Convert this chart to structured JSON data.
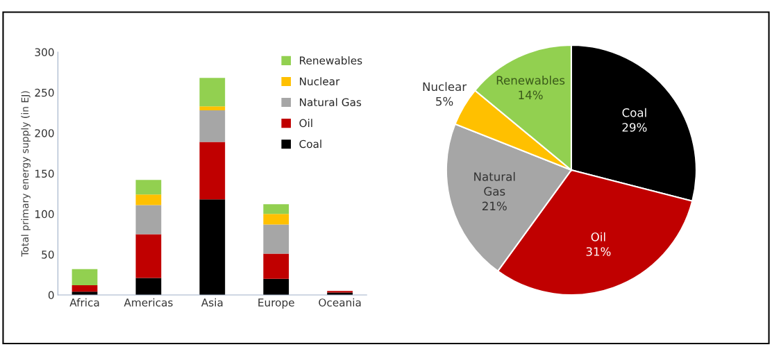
{
  "chart_data": [
    {
      "type": "bar",
      "stacked": true,
      "ylabel": "Total primary energy supply (in EJ)",
      "categories": [
        "Africa",
        "Americas",
        "Asia",
        "Europe",
        "Oceania"
      ],
      "ylim": [
        0,
        300
      ],
      "yticks": [
        0,
        50,
        100,
        150,
        200,
        250,
        300
      ],
      "grid": false,
      "legend": "top right",
      "series": [
        {
          "name": "Coal",
          "color": "#000000",
          "values": [
            4,
            21,
            118,
            20,
            3
          ]
        },
        {
          "name": "Oil",
          "color": "#c00000",
          "values": [
            8,
            54,
            71,
            31,
            2
          ]
        },
        {
          "name": "Natural Gas",
          "color": "#a6a6a6",
          "values": [
            null,
            36,
            39,
            36,
            null
          ]
        },
        {
          "name": "Nuclear",
          "color": "#ffc000",
          "values": [
            null,
            13,
            5,
            13,
            null
          ]
        },
        {
          "name": "Renewables",
          "color": "#92d050",
          "values": [
            20,
            18,
            35,
            12,
            null
          ]
        }
      ]
    },
    {
      "type": "pie",
      "categories": [
        "Coal",
        "Oil",
        "Natural\nGas",
        "Nuclear",
        "Renewables"
      ],
      "values": [
        29,
        31,
        21,
        5,
        14
      ],
      "value_labels": [
        "29%",
        "31%",
        "21%",
        "5%",
        "14%"
      ],
      "colors": [
        "#000000",
        "#c00000",
        "#a6a6a6",
        "#ffc000",
        "#92d050"
      ]
    }
  ]
}
